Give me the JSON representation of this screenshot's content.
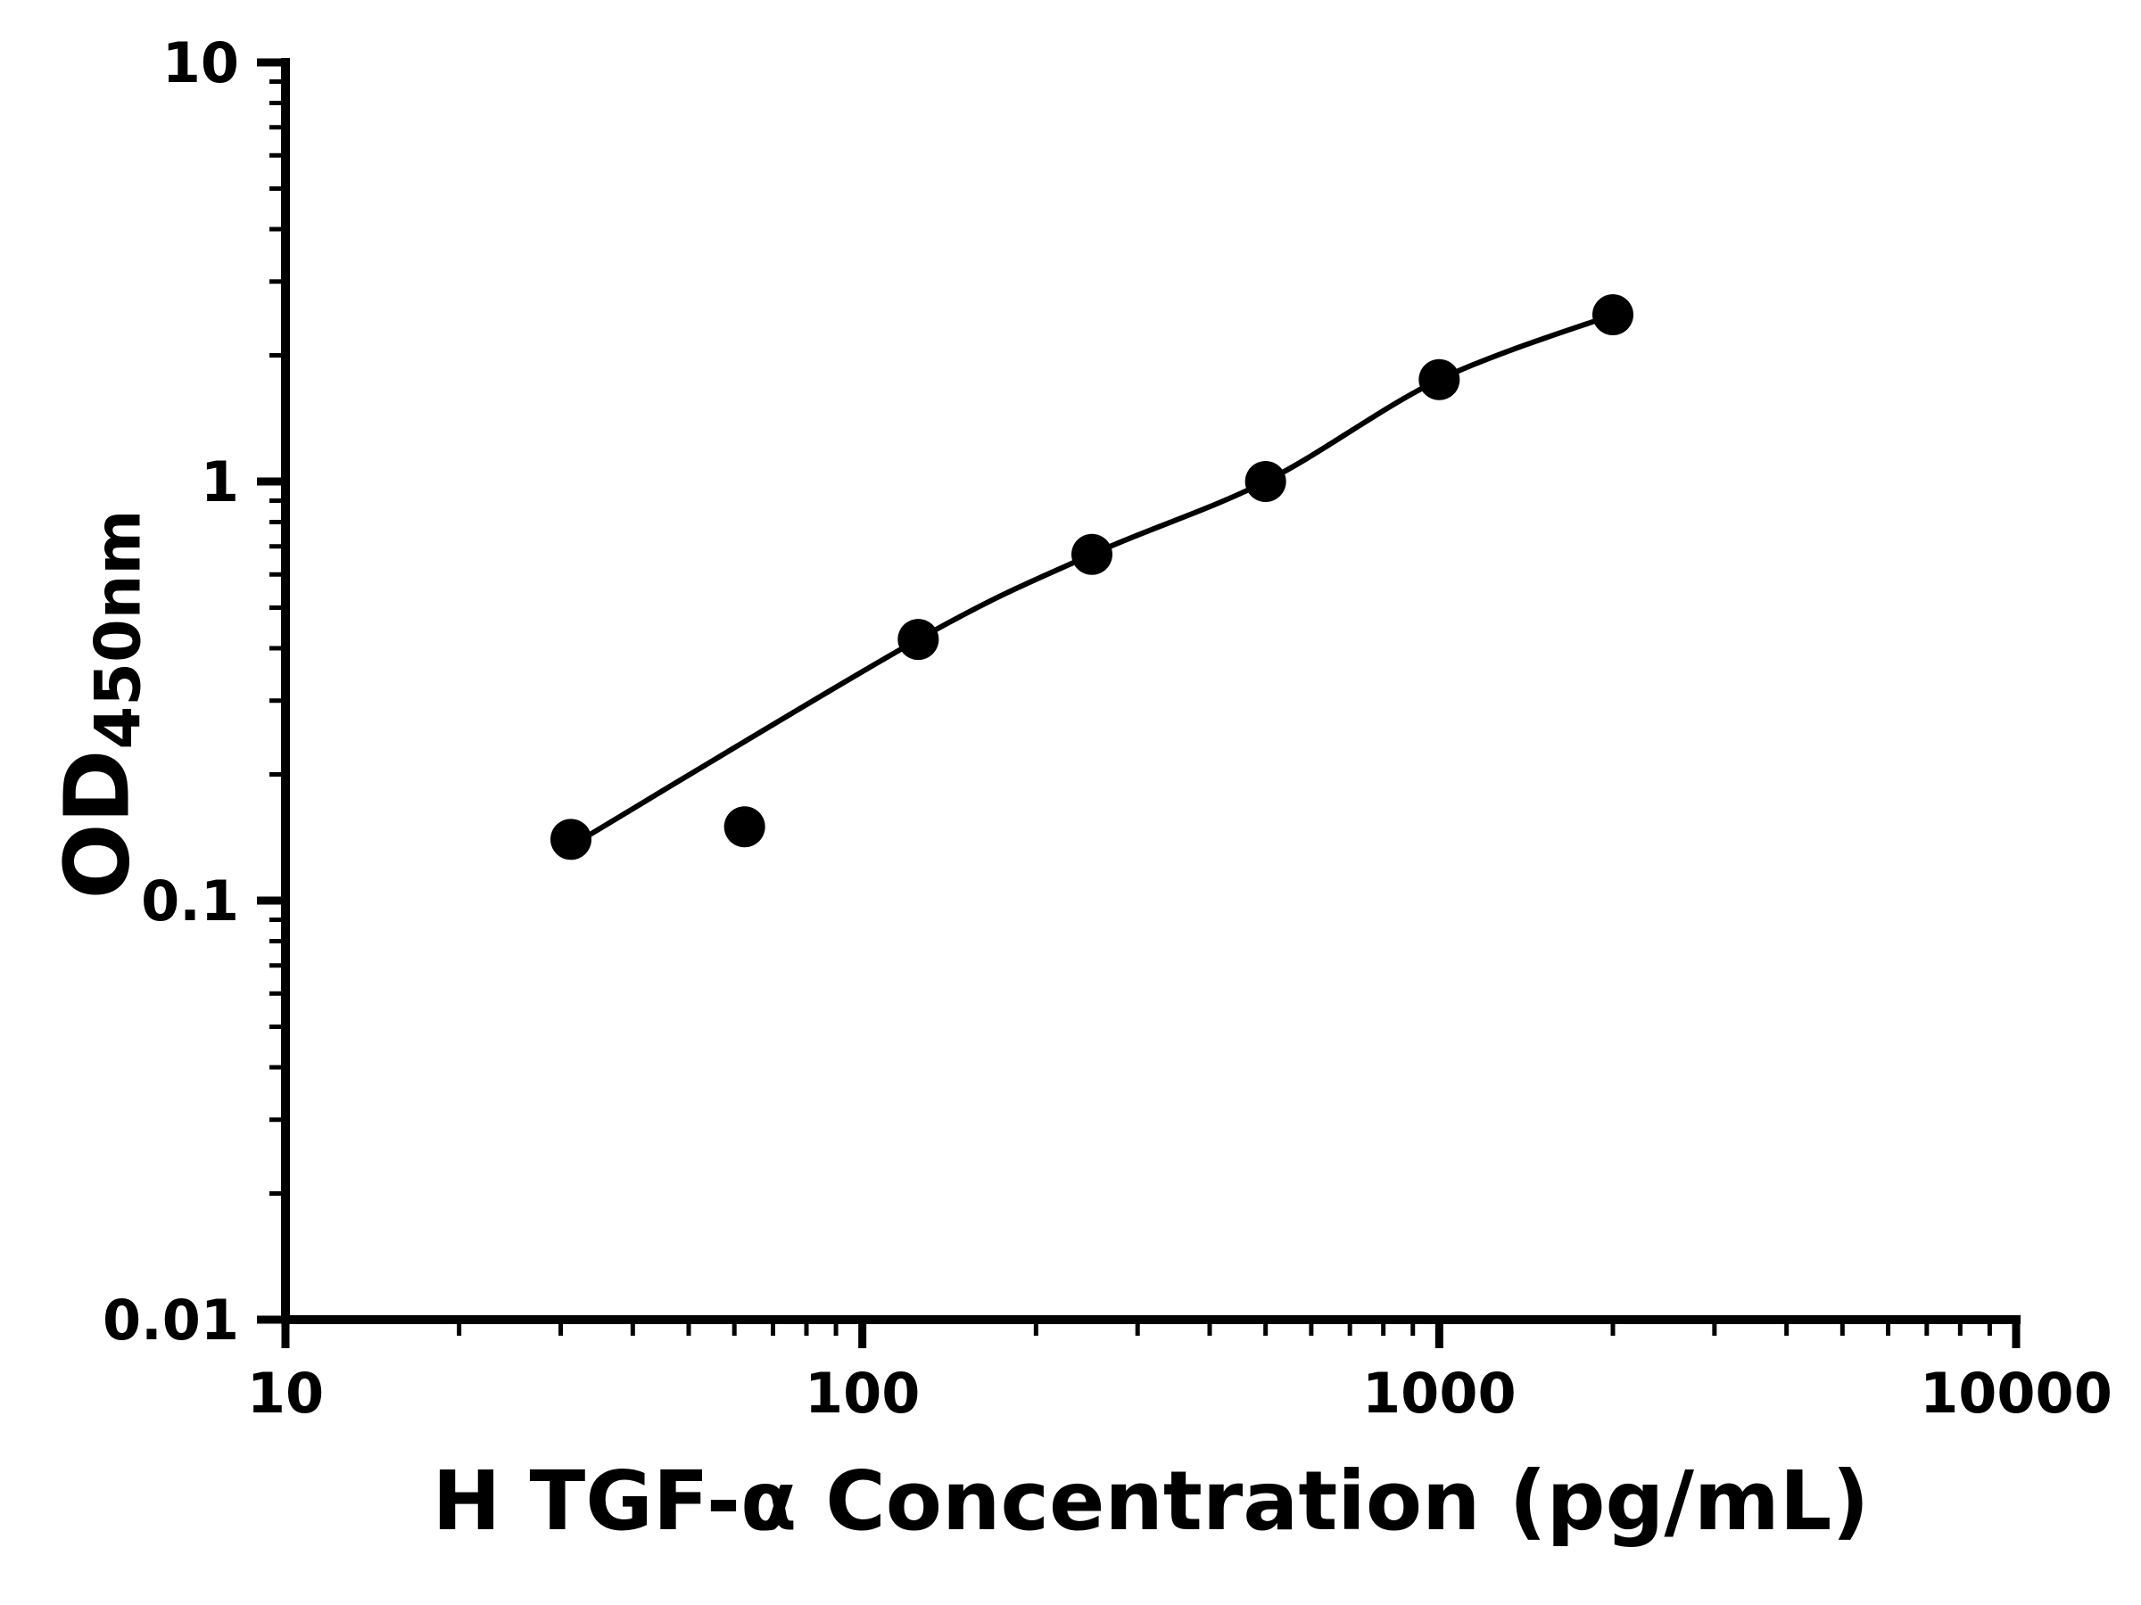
{
  "chart_data": {
    "type": "scatter",
    "title": "",
    "xlabel": "H TGF-α Concentration (pg/mL)",
    "ylabel": "OD",
    "ylabel_subscript": "450nm",
    "x_scale": "log",
    "y_scale": "log",
    "xlim": [
      10,
      10000
    ],
    "ylim": [
      0.01,
      10
    ],
    "x_ticks": [
      10,
      100,
      1000,
      10000
    ],
    "x_tick_labels": [
      "10",
      "100",
      "1000",
      "10000"
    ],
    "y_ticks": [
      0.01,
      0.1,
      1,
      10
    ],
    "y_tick_labels": [
      "0.01",
      "0.1",
      "1",
      "10"
    ],
    "grid": false,
    "legend": false,
    "marker_color": "#000000",
    "line_color": "#000000",
    "background_color": "#ffffff",
    "series": [
      {
        "name": "standard-curve-points",
        "x": [
          31.25,
          62.5,
          125,
          250,
          500,
          1000,
          2000
        ],
        "y": [
          0.14,
          0.15,
          0.42,
          0.67,
          1.0,
          1.75,
          2.5
        ]
      }
    ],
    "curve": {
      "name": "fitted-standard-curve",
      "x": [
        31.25,
        125,
        250,
        500,
        1000,
        2000
      ],
      "y": [
        0.135,
        0.42,
        0.67,
        1.0,
        1.75,
        2.5
      ]
    }
  }
}
